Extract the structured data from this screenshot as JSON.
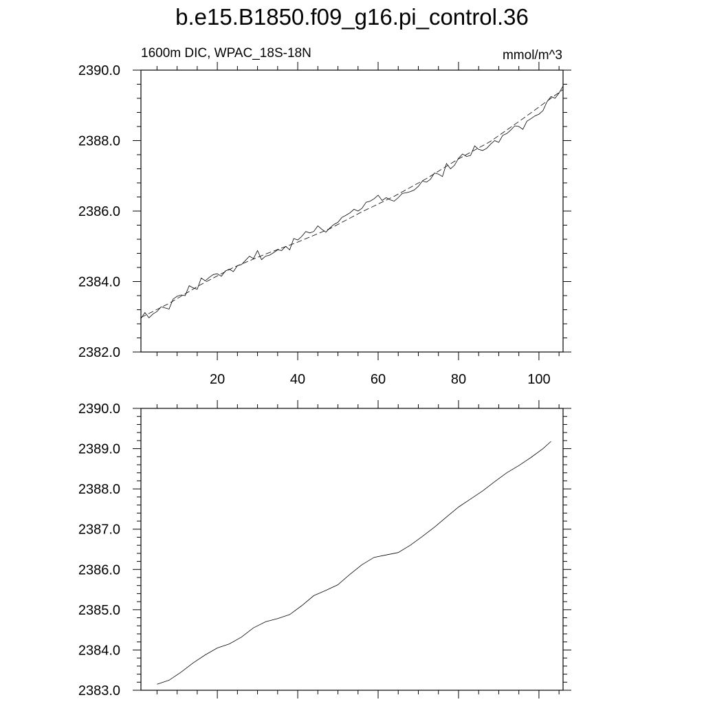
{
  "title": "b.e15.B1850.f09_g16.pi_control.36",
  "chart_data": [
    {
      "type": "line",
      "left_label": "1600m DIC, WPAC_18S-18N",
      "right_label": "mmol/m^3",
      "xlim": [
        1,
        106
      ],
      "ylim": [
        2382.0,
        2390.0
      ],
      "x_ticks": [
        20,
        40,
        60,
        80,
        100
      ],
      "x_tick_labels": [
        "20",
        "40",
        "60",
        "80",
        "100"
      ],
      "y_ticks": [
        2382.0,
        2384.0,
        2386.0,
        2388.0,
        2390.0
      ],
      "y_tick_labels": [
        "2382.0",
        "2384.0",
        "2386.0",
        "2388.0",
        "2390.0"
      ],
      "series": [
        {
          "style": "solid",
          "x": [
            1,
            2,
            3,
            4,
            5,
            6,
            7,
            8,
            9,
            10,
            11,
            12,
            13,
            14,
            15,
            16,
            17,
            18,
            19,
            20,
            21,
            22,
            23,
            24,
            25,
            26,
            27,
            28,
            29,
            30,
            31,
            32,
            33,
            34,
            35,
            36,
            37,
            38,
            39,
            40,
            41,
            42,
            43,
            44,
            45,
            46,
            47,
            48,
            49,
            50,
            51,
            52,
            53,
            54,
            55,
            56,
            57,
            58,
            59,
            60,
            61,
            62,
            63,
            64,
            65,
            66,
            67,
            68,
            69,
            70,
            71,
            72,
            73,
            74,
            75,
            76,
            77,
            78,
            79,
            80,
            81,
            82,
            83,
            84,
            85,
            86,
            87,
            88,
            89,
            90,
            91,
            92,
            93,
            94,
            95,
            96,
            97,
            98,
            99,
            100,
            101,
            102,
            103,
            104,
            105,
            106
          ],
          "values": [
            2382.95,
            2383.12,
            2382.97,
            2383.08,
            2383.15,
            2383.28,
            2383.25,
            2383.22,
            2383.5,
            2383.58,
            2383.62,
            2383.6,
            2383.88,
            2383.82,
            2383.78,
            2384.1,
            2384.02,
            2384.12,
            2384.2,
            2384.22,
            2384.15,
            2384.3,
            2384.35,
            2384.28,
            2384.45,
            2384.48,
            2384.6,
            2384.72,
            2384.65,
            2384.88,
            2384.62,
            2384.72,
            2384.75,
            2384.82,
            2384.9,
            2384.88,
            2385.0,
            2384.9,
            2385.22,
            2385.18,
            2385.28,
            2385.42,
            2385.38,
            2385.42,
            2385.58,
            2385.48,
            2385.4,
            2385.52,
            2385.62,
            2385.68,
            2385.82,
            2385.88,
            2385.95,
            2386.05,
            2386.0,
            2386.08,
            2386.25,
            2386.28,
            2386.35,
            2386.45,
            2386.3,
            2386.38,
            2386.32,
            2386.28,
            2386.38,
            2386.5,
            2386.52,
            2386.55,
            2386.6,
            2386.7,
            2386.85,
            2386.82,
            2386.9,
            2387.08,
            2387.05,
            2386.98,
            2387.35,
            2387.2,
            2387.3,
            2387.5,
            2387.62,
            2387.55,
            2387.58,
            2387.85,
            2387.75,
            2387.72,
            2387.78,
            2387.9,
            2388.0,
            2387.95,
            2388.15,
            2388.2,
            2388.3,
            2388.42,
            2388.4,
            2388.32,
            2388.55,
            2388.62,
            2388.7,
            2388.75,
            2388.85,
            2389.1,
            2389.25,
            2389.2,
            2389.35,
            2389.55
          ]
        },
        {
          "style": "dashed",
          "x": [
            1,
            8,
            16,
            24,
            32,
            40,
            48,
            56,
            64,
            72,
            80,
            88,
            96,
            106
          ],
          "values": [
            2382.98,
            2383.38,
            2383.92,
            2384.4,
            2384.78,
            2385.12,
            2385.5,
            2385.98,
            2386.42,
            2386.92,
            2387.48,
            2387.98,
            2388.62,
            2389.45
          ]
        }
      ]
    },
    {
      "type": "line",
      "xlim": [
        1,
        106
      ],
      "ylim": [
        2383.0,
        2390.0
      ],
      "x_ticks": [
        20,
        40,
        60,
        80,
        100
      ],
      "y_ticks": [
        2383.0,
        2384.0,
        2385.0,
        2386.0,
        2387.0,
        2388.0,
        2389.0,
        2390.0
      ],
      "y_tick_labels": [
        "2383.0",
        "2384.0",
        "2385.0",
        "2386.0",
        "2387.0",
        "2388.0",
        "2389.0",
        "2390.0"
      ],
      "series": [
        {
          "style": "solid",
          "x": [
            5,
            8,
            11,
            14,
            17,
            20,
            23,
            26,
            29,
            32,
            35,
            38,
            41,
            44,
            47,
            50,
            53,
            56,
            59,
            62,
            65,
            68,
            71,
            74,
            77,
            80,
            83,
            86,
            89,
            92,
            95,
            98,
            101,
            103
          ],
          "values": [
            2383.15,
            2383.25,
            2383.45,
            2383.68,
            2383.88,
            2384.05,
            2384.15,
            2384.32,
            2384.55,
            2384.7,
            2384.78,
            2384.88,
            2385.1,
            2385.35,
            2385.48,
            2385.62,
            2385.88,
            2386.12,
            2386.3,
            2386.36,
            2386.42,
            2386.6,
            2386.82,
            2387.05,
            2387.3,
            2387.55,
            2387.75,
            2387.95,
            2388.18,
            2388.4,
            2388.58,
            2388.78,
            2389.0,
            2389.18
          ]
        }
      ]
    }
  ]
}
